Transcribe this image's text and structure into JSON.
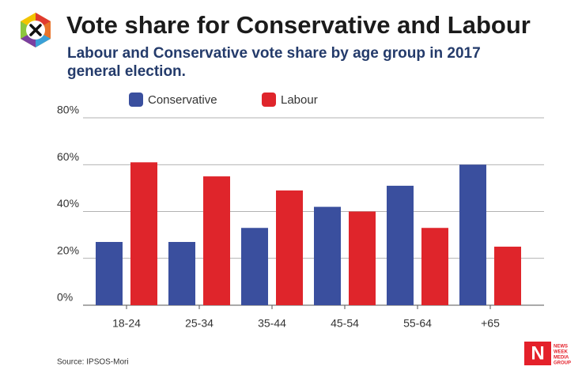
{
  "chart_data": {
    "type": "bar",
    "title": "Vote share for Conservative and Labour",
    "subtitle": "Labour and Conservative vote share by age group in 2017 general election.",
    "categories": [
      "18-24",
      "25-34",
      "35-44",
      "45-54",
      "55-64",
      "+65"
    ],
    "series": [
      {
        "name": "Conservative",
        "color": "#3a4f9e",
        "values": [
          27,
          27,
          33,
          42,
          51,
          60
        ]
      },
      {
        "name": "Labour",
        "color": "#df252b",
        "values": [
          61,
          55,
          49,
          40,
          33,
          25
        ]
      }
    ],
    "ylim": [
      0,
      80
    ],
    "yticks": [
      {
        "value": 0,
        "label": "0%"
      },
      {
        "value": 20,
        "label": "20%"
      },
      {
        "value": 40,
        "label": "40%"
      },
      {
        "value": 60,
        "label": "60%"
      },
      {
        "value": 80,
        "label": "80%"
      }
    ],
    "grid": true,
    "source": "Source: IPSOS-Mori"
  },
  "logo": {
    "letter": "N",
    "lines": [
      "NEWS",
      "WEEK",
      "MEDIA",
      "GROUP"
    ]
  }
}
